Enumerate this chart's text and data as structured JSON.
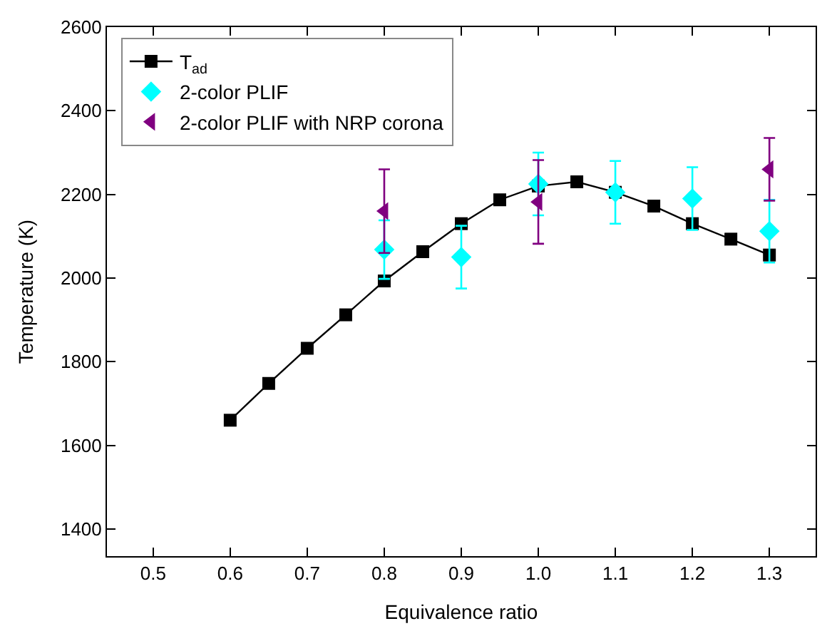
{
  "chart_data": {
    "type": "line",
    "xlabel": "Equivalence ratio",
    "ylabel": "Temperature (K)",
    "xlim": [
      0.44,
      1.36
    ],
    "ylim": [
      1335,
      2600
    ],
    "xticks": [
      {
        "value": 0.5,
        "label": "0.5"
      },
      {
        "value": 0.6,
        "label": "0.6"
      },
      {
        "value": 0.7,
        "label": "0.7"
      },
      {
        "value": 0.8,
        "label": "0.8"
      },
      {
        "value": 0.9,
        "label": "0.9"
      },
      {
        "value": 1.0,
        "label": "1.0"
      },
      {
        "value": 1.1,
        "label": "1.1"
      },
      {
        "value": 1.2,
        "label": "1.2"
      },
      {
        "value": 1.3,
        "label": "1.3"
      }
    ],
    "yticks": [
      1400,
      1600,
      1800,
      2000,
      2200,
      2400,
      2600
    ],
    "legend": "top left",
    "series": [
      {
        "name": "T$_{ad}$",
        "marker": "square",
        "color": "#000000",
        "x": [
          0.6,
          0.65,
          0.7,
          0.75,
          0.8,
          0.85,
          0.9,
          0.95,
          1.0,
          1.05,
          1.1,
          1.15,
          1.2,
          1.25,
          1.3
        ],
        "values": [
          1660,
          1748,
          1832,
          1912,
          1993,
          2063,
          2130,
          2187,
          2220,
          2230,
          2205,
          2172,
          2130,
          2093,
          2055
        ]
      },
      {
        "name": "2-color PLIF",
        "type": "scatter",
        "marker": "diamond",
        "color": "#00ffff",
        "x": [
          0.8,
          0.9,
          1.0,
          1.1,
          1.2,
          1.3
        ],
        "values": [
          2068,
          2050,
          2225,
          2205,
          2190,
          2112
        ],
        "errors": [
          70,
          75,
          75,
          75,
          75,
          75
        ]
      },
      {
        "name": "2-color PLIF with NRP corona",
        "type": "scatter",
        "marker": "triangle",
        "color": "#800080",
        "x": [
          0.8,
          1.0,
          1.3
        ],
        "values": [
          2160,
          2182,
          2260
        ],
        "errors": [
          100,
          100,
          75
        ]
      }
    ]
  }
}
